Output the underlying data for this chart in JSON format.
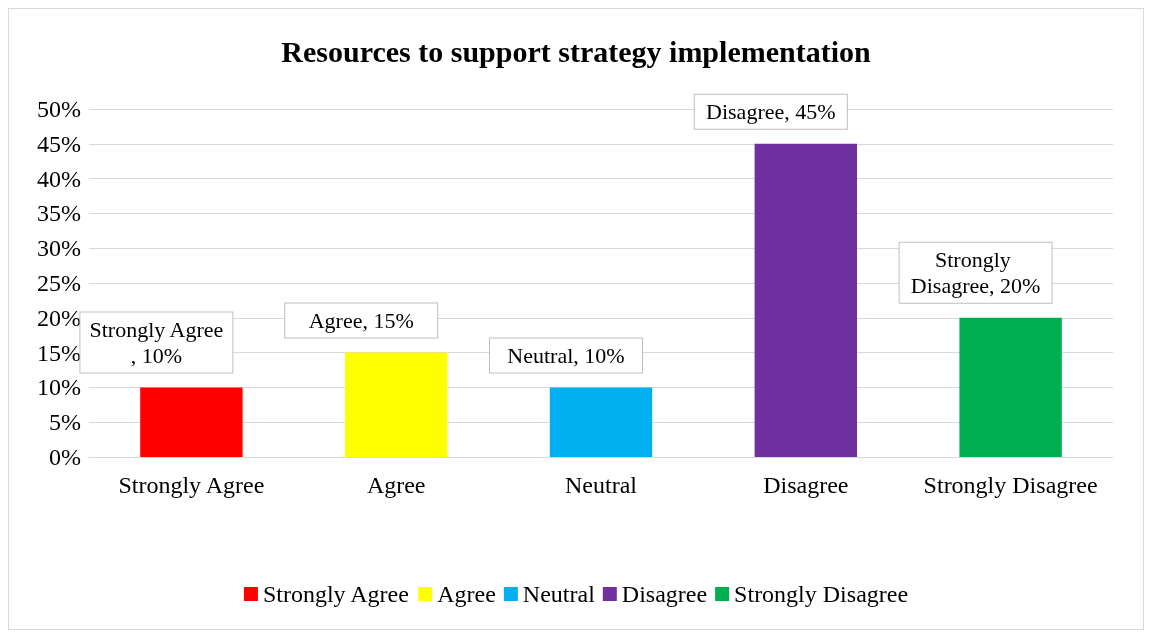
{
  "chart_data": {
    "type": "bar",
    "title": "Resources to support strategy implementation",
    "categories": [
      "Strongly Agree",
      "Agree",
      "Neutral",
      "Disagree",
      "Strongly Disagree"
    ],
    "series": [
      {
        "name": "Strongly Agree",
        "color": "#ff0000",
        "values": [
          10,
          null,
          null,
          null,
          null
        ],
        "value_labels": [
          "Strongly Agree, 10%",
          null,
          null,
          null,
          null
        ]
      },
      {
        "name": "Agree",
        "color": "#ffff00",
        "values": [
          null,
          15,
          null,
          null,
          null
        ],
        "value_labels": [
          null,
          "Agree, 15%",
          null,
          null,
          null
        ]
      },
      {
        "name": "Neutral",
        "color": "#00b0f0",
        "values": [
          null,
          null,
          10,
          null,
          null
        ],
        "value_labels": [
          null,
          null,
          "Neutral, 10%",
          null,
          null
        ]
      },
      {
        "name": "Disagree",
        "color": "#7030a0",
        "values": [
          null,
          null,
          null,
          45,
          null
        ],
        "value_labels": [
          null,
          null,
          null,
          "Disagree, 45%",
          null
        ]
      },
      {
        "name": "Strongly Disagree",
        "color": "#00b050",
        "values": [
          null,
          null,
          null,
          null,
          20
        ],
        "value_labels": [
          null,
          null,
          null,
          null,
          "Strongly Disagree, 20%"
        ]
      }
    ],
    "ylim": [
      0,
      50
    ],
    "yticks": [
      {
        "value": 0,
        "label": "0%"
      },
      {
        "value": 5,
        "label": "5%"
      },
      {
        "value": 10,
        "label": "10%"
      },
      {
        "value": 15,
        "label": "15%"
      },
      {
        "value": 20,
        "label": "20%"
      },
      {
        "value": 25,
        "label": "25%"
      },
      {
        "value": 30,
        "label": "30%"
      },
      {
        "value": 35,
        "label": "35%"
      },
      {
        "value": 40,
        "label": "40%"
      },
      {
        "value": 45,
        "label": "45%"
      },
      {
        "value": 50,
        "label": "50%"
      }
    ],
    "grid": "y",
    "legend": "bottom"
  }
}
